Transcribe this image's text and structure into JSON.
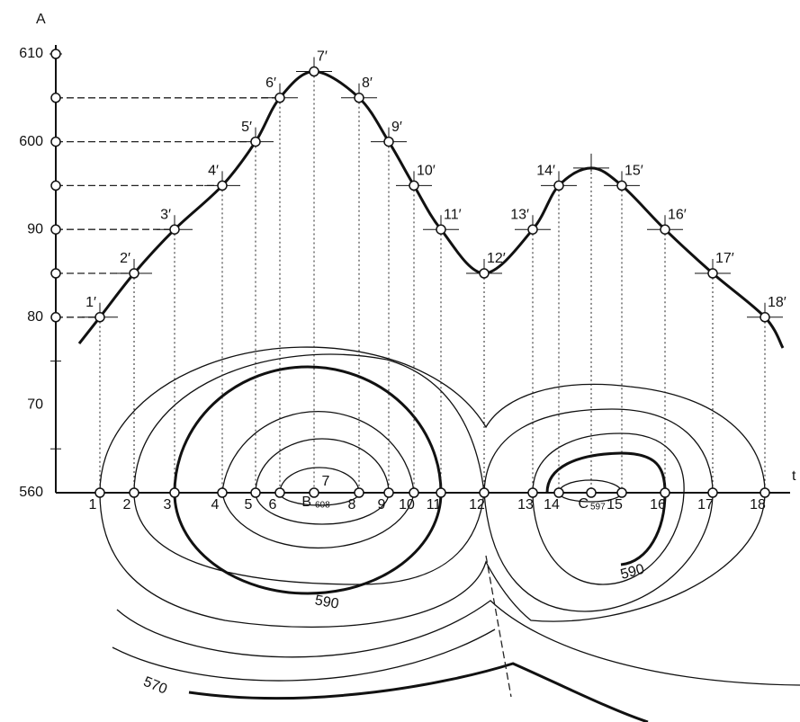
{
  "axis": {
    "vertical_label": "A",
    "horizontal_label": "t",
    "ticks": [
      "610",
      "600",
      "90",
      "80",
      "70",
      "560"
    ]
  },
  "base_points": [
    "1",
    "2",
    "3",
    "4",
    "5",
    "6",
    "7",
    "8",
    "9",
    "10",
    "11",
    "12",
    "13",
    "14",
    "15",
    "16",
    "17",
    "18"
  ],
  "profile_points": [
    "1′",
    "2′",
    "3′",
    "4′",
    "5′",
    "6′",
    "7′",
    "8′",
    "9′",
    "10′",
    "11′",
    "12′",
    "13′",
    "14′",
    "15′",
    "16′",
    "17′",
    "18′"
  ],
  "summits": [
    {
      "label": "B",
      "elevation": "608"
    },
    {
      "label": "C",
      "elevation": "597"
    }
  ],
  "contour_labels": [
    "590",
    "590",
    "570"
  ]
}
